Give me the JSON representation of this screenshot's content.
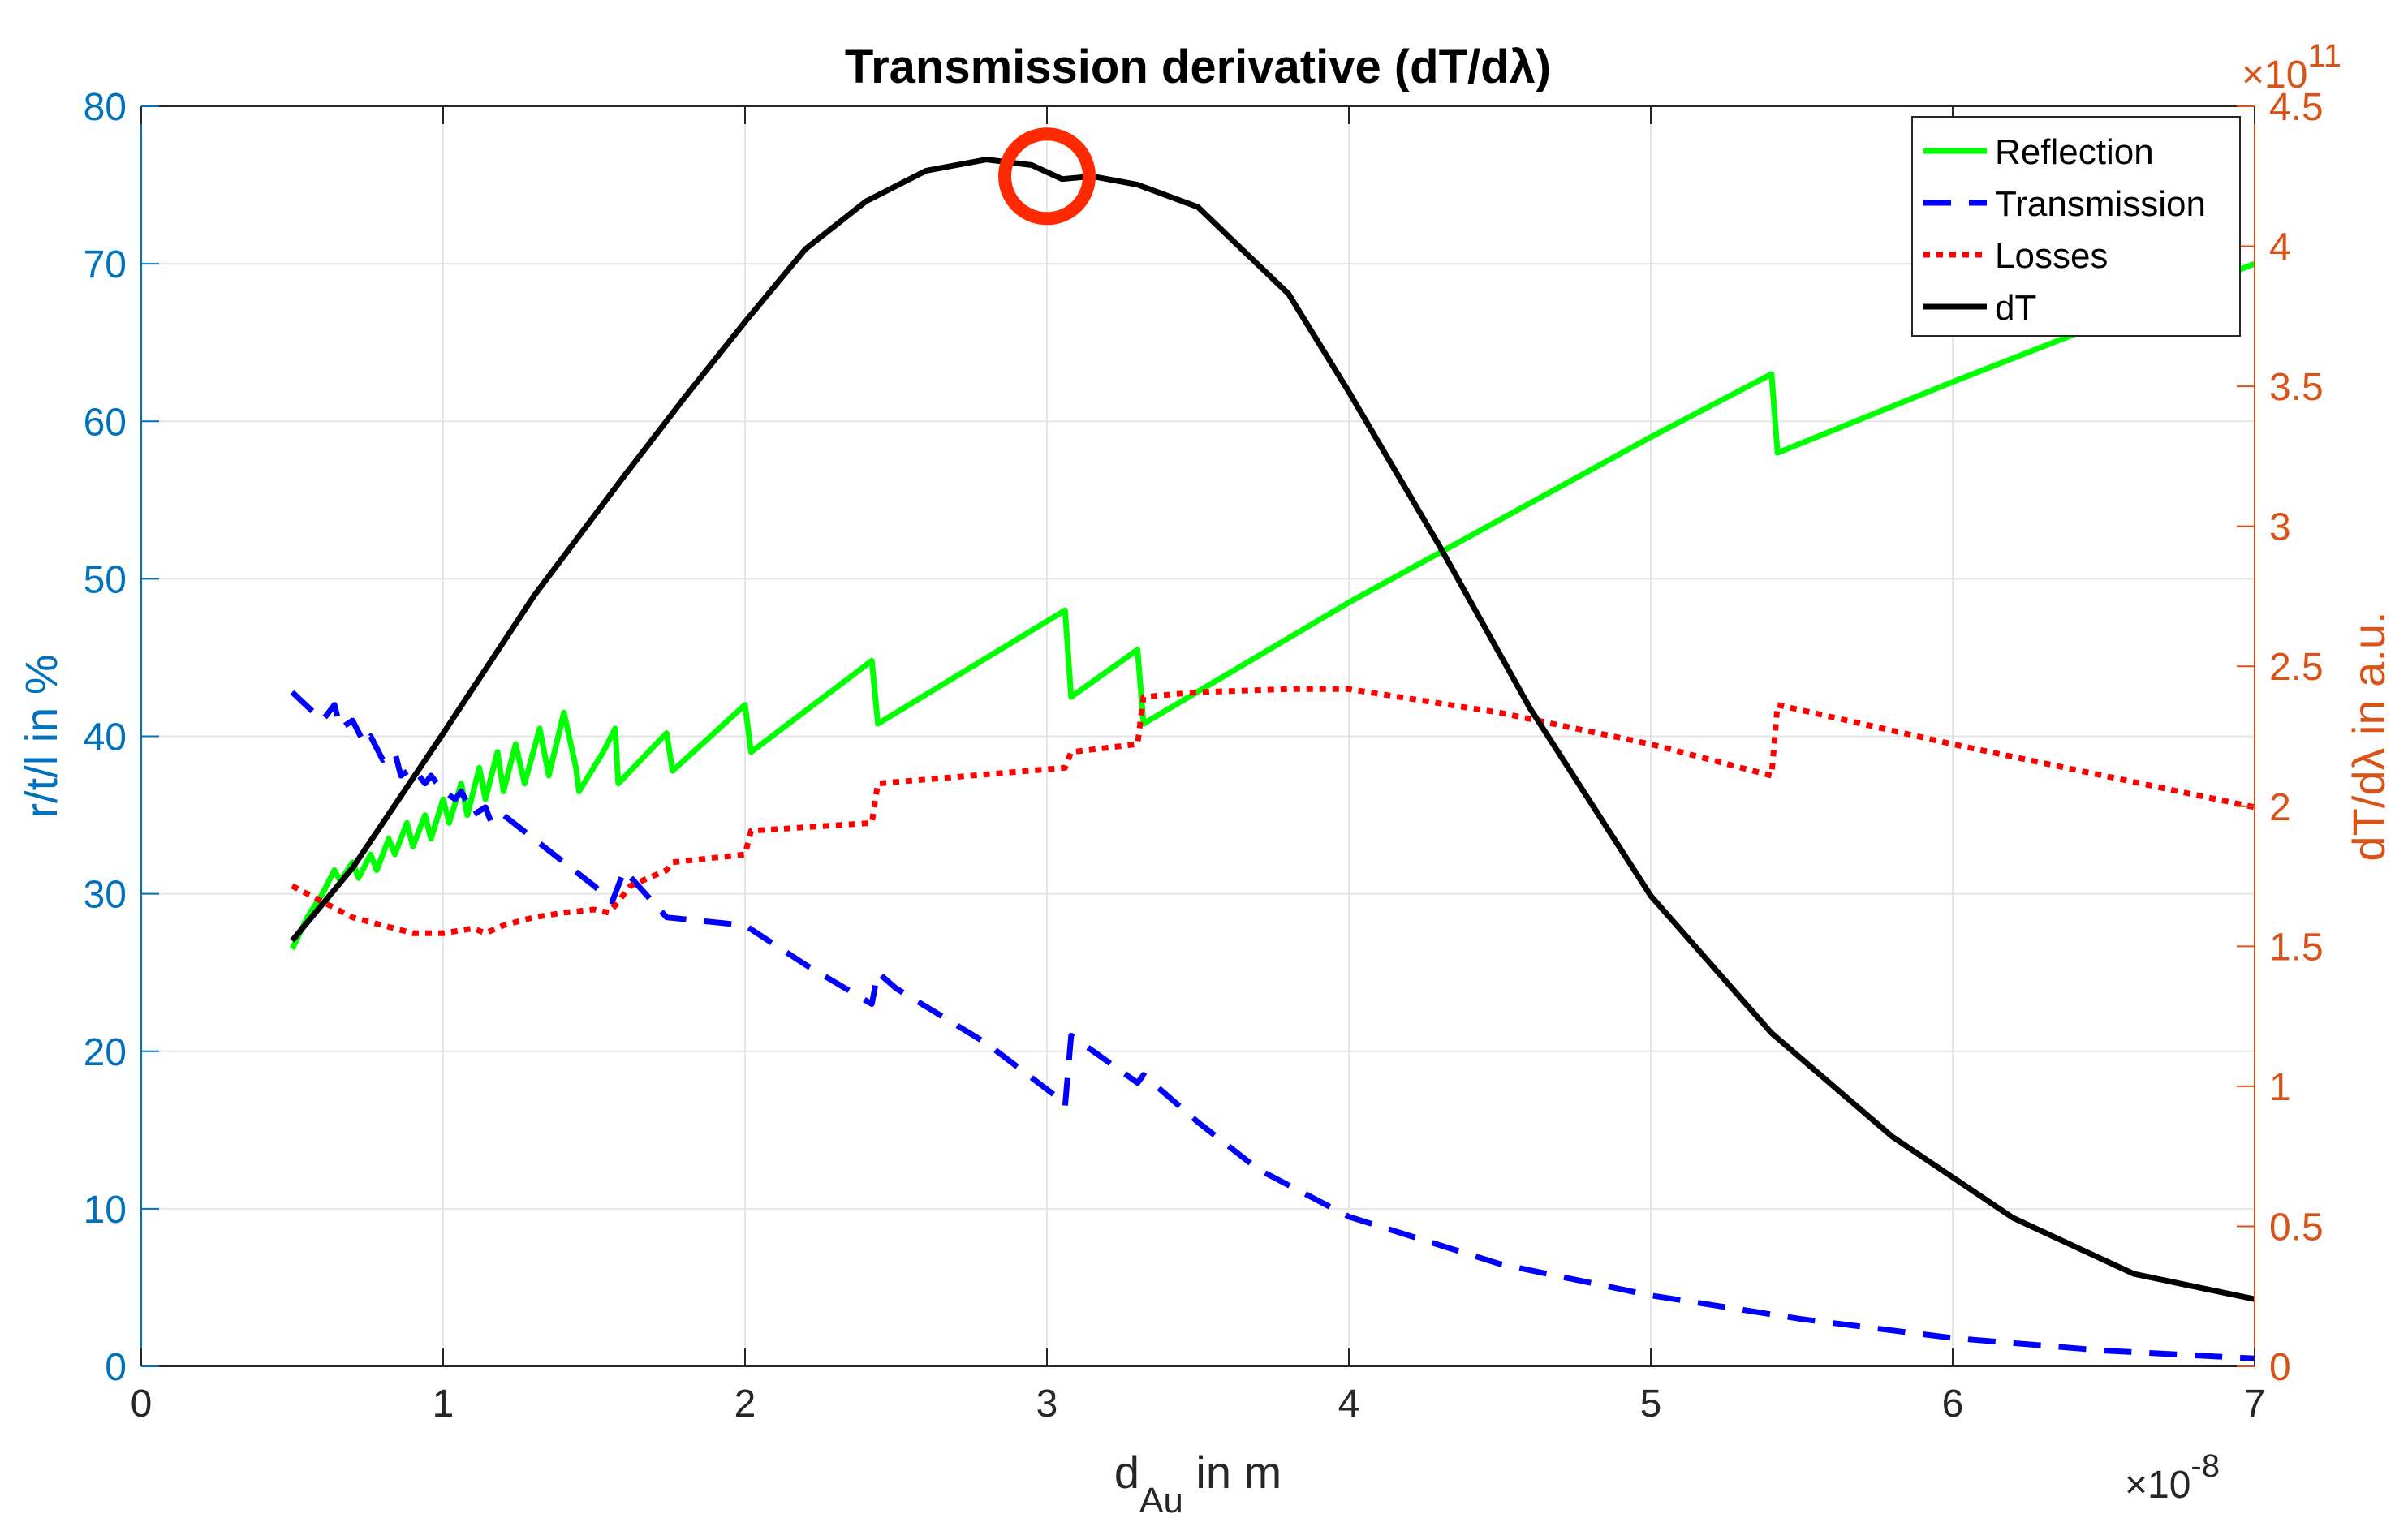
{
  "chart_data": {
    "type": "line",
    "title": "Transmission derivative (dT/dλ)",
    "xlabel": {
      "base": "d",
      "sub": "Au",
      "rest": " in m"
    },
    "ylabel_left": "r/t/l in %",
    "ylabel_right": "dT/dλ in a.u.",
    "x_multiplier": {
      "times": "×10",
      "power": "-8"
    },
    "y_right_multiplier": {
      "base": "10",
      "power": "11"
    },
    "xlim": [
      0,
      7
    ],
    "ylim_left": [
      0,
      80
    ],
    "ylim_right": [
      0,
      4.5
    ],
    "x_ticks": [
      0,
      1,
      2,
      3,
      4,
      5,
      6,
      7
    ],
    "x_tick_labels": [
      "0",
      "1",
      "2",
      "3",
      "4",
      "5",
      "6",
      "7"
    ],
    "y_left_ticks": [
      0,
      10,
      20,
      30,
      40,
      50,
      60,
      70,
      80
    ],
    "y_left_tick_labels": [
      "0",
      "10",
      "20",
      "30",
      "40",
      "50",
      "60",
      "70",
      "80"
    ],
    "y_right_ticks": [
      0,
      0.5,
      1,
      1.5,
      2,
      2.5,
      3,
      3.5,
      4,
      4.5
    ],
    "y_right_tick_labels": [
      "0",
      "0.5",
      "1",
      "1.5",
      "2",
      "2.5",
      "3",
      "3.5",
      "4",
      "4.5"
    ],
    "grid": true,
    "legend_position": "top-right",
    "colors": {
      "left_axis": "#0072BD",
      "right_axis": "#D95319",
      "marker": "#FF2A00"
    },
    "series": [
      {
        "name": "Reflection",
        "axis": "left",
        "color": "#00FF00",
        "style": "solid",
        "x": [
          0.5,
          0.55,
          0.6,
          0.64,
          0.66,
          0.7,
          0.72,
          0.76,
          0.78,
          0.82,
          0.84,
          0.88,
          0.9,
          0.94,
          0.96,
          1.0,
          1.02,
          1.06,
          1.08,
          1.12,
          1.14,
          1.18,
          1.2,
          1.24,
          1.27,
          1.32,
          1.35,
          1.4,
          1.44,
          1.45,
          1.53,
          1.57,
          1.58,
          1.74,
          1.76,
          2.0,
          2.02,
          2.42,
          2.44,
          3.06,
          3.08,
          3.3,
          3.32,
          4.0,
          5.0,
          5.4,
          5.42,
          6.0,
          7.0
        ],
        "y": [
          26.5,
          28.5,
          30.0,
          31.5,
          30.8,
          32.0,
          31.0,
          32.5,
          31.5,
          33.5,
          32.5,
          34.5,
          33.0,
          35.0,
          33.5,
          36.0,
          34.5,
          37.0,
          35.0,
          38.0,
          36.0,
          39.0,
          36.5,
          39.5,
          37.0,
          40.5,
          37.5,
          41.5,
          38.0,
          36.5,
          39.0,
          40.5,
          37.0,
          40.2,
          37.8,
          42.0,
          39.0,
          44.8,
          40.8,
          48.0,
          42.5,
          45.5,
          40.8,
          48.5,
          59.0,
          63.0,
          58.0,
          62.5,
          70.0
        ]
      },
      {
        "name": "Transmission",
        "axis": "left",
        "color": "#0000FF",
        "style": "dashed",
        "x": [
          0.5,
          0.6,
          0.64,
          0.66,
          0.7,
          0.74,
          0.76,
          0.8,
          0.84,
          0.86,
          0.9,
          0.94,
          0.96,
          1.0,
          1.04,
          1.06,
          1.1,
          1.14,
          1.16,
          1.2,
          1.3,
          1.4,
          1.5,
          1.56,
          1.6,
          1.74,
          2.0,
          2.2,
          2.42,
          2.44,
          2.5,
          2.8,
          3.04,
          3.06,
          3.08,
          3.3,
          3.32,
          3.5,
          3.7,
          4.0,
          4.5,
          5.0,
          5.5,
          6.0,
          6.5,
          7.0
        ],
        "y": [
          42.8,
          41.0,
          42.0,
          40.5,
          41.0,
          39.5,
          40.0,
          38.5,
          39.0,
          37.5,
          38.0,
          37.0,
          37.5,
          36.5,
          36.0,
          36.5,
          35.0,
          35.5,
          34.5,
          35.0,
          33.5,
          32.0,
          30.5,
          29.5,
          31.5,
          28.5,
          28.0,
          25.5,
          23.0,
          25.0,
          24.0,
          20.5,
          17.0,
          16.5,
          21.0,
          18.0,
          18.5,
          15.5,
          12.5,
          9.5,
          6.5,
          4.5,
          3.0,
          1.8,
          1.0,
          0.5
        ]
      },
      {
        "name": "Losses",
        "axis": "left",
        "color": "#FF0000",
        "style": "dotted",
        "x": [
          0.5,
          0.6,
          0.7,
          0.8,
          0.9,
          1.0,
          1.1,
          1.14,
          1.2,
          1.3,
          1.4,
          1.5,
          1.55,
          1.58,
          1.62,
          1.74,
          1.76,
          2.0,
          2.02,
          2.42,
          2.44,
          3.06,
          3.08,
          3.3,
          3.32,
          3.5,
          3.8,
          4.0,
          4.5,
          5.0,
          5.4,
          5.42,
          6.0,
          7.0
        ],
        "y": [
          30.5,
          29.5,
          28.5,
          28.0,
          27.5,
          27.5,
          27.8,
          27.5,
          28.0,
          28.5,
          28.8,
          29.0,
          28.8,
          29.5,
          30.5,
          31.5,
          32.0,
          32.5,
          34.0,
          34.5,
          37.0,
          38.0,
          39.0,
          39.5,
          42.5,
          42.8,
          43.0,
          43.0,
          41.5,
          39.5,
          37.5,
          42.0,
          39.5,
          35.5
        ]
      },
      {
        "name": "dT",
        "axis": "right",
        "color": "#000000",
        "style": "solid",
        "x": [
          0.5,
          0.7,
          1.0,
          1.3,
          1.6,
          1.8,
          2.0,
          2.2,
          2.4,
          2.6,
          2.8,
          2.95,
          3.05,
          3.15,
          3.3,
          3.5,
          3.8,
          4.0,
          4.3,
          4.6,
          5.0,
          5.4,
          5.8,
          6.2,
          6.6,
          7.0
        ],
        "y": [
          1.52,
          1.78,
          2.26,
          2.75,
          3.18,
          3.46,
          3.73,
          3.99,
          4.16,
          4.27,
          4.31,
          4.29,
          4.24,
          4.25,
          4.22,
          4.14,
          3.83,
          3.48,
          2.93,
          2.35,
          1.68,
          1.19,
          0.82,
          0.53,
          0.33,
          0.24
        ]
      }
    ],
    "annotations": [
      {
        "type": "circle",
        "x": 3.0,
        "y_right": 4.25,
        "color": "#FF2A00"
      }
    ]
  }
}
